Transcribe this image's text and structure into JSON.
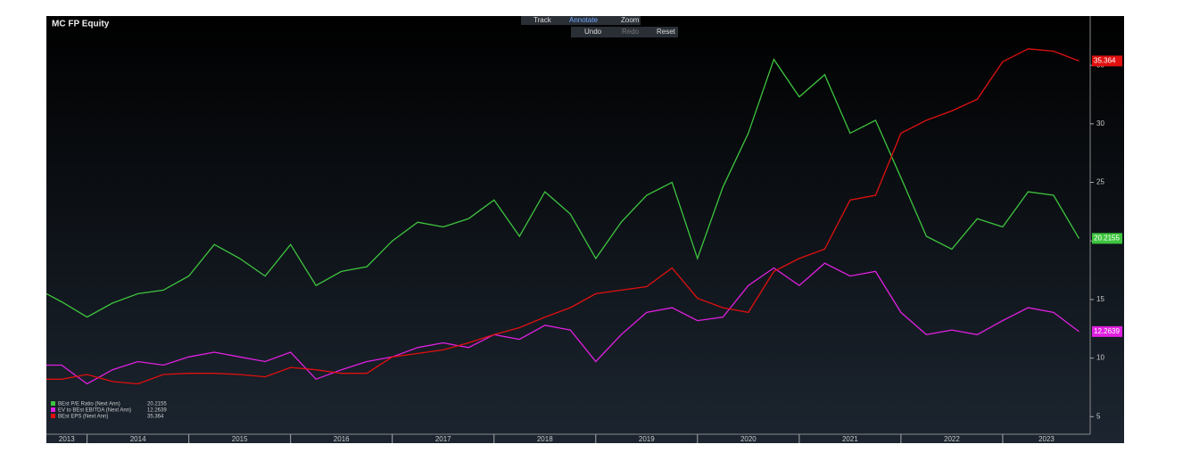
{
  "toolbar": [
    "Track",
    "Annotate",
    "Zoom",
    "Undo",
    "Redo",
    "Reset"
  ],
  "chart_data": {
    "type": "line",
    "title": "MC FP Equity",
    "x": [
      2013.6,
      2013.75,
      2014,
      2014.25,
      2014.5,
      2014.75,
      2015,
      2015.25,
      2015.5,
      2015.75,
      2016,
      2016.25,
      2016.5,
      2016.75,
      2017,
      2017.25,
      2017.5,
      2017.75,
      2018,
      2018.25,
      2018.5,
      2018.75,
      2019,
      2019.25,
      2019.5,
      2019.75,
      2020,
      2020.25,
      2020.5,
      2020.75,
      2021,
      2021.25,
      2021.5,
      2021.75,
      2022,
      2022.25,
      2022.5,
      2022.75,
      2023,
      2023.25,
      2023.5,
      2023.75
    ],
    "xlim": [
      2013.6,
      2023.86
    ],
    "xticks": [
      2013,
      2014,
      2015,
      2016,
      2017,
      2018,
      2019,
      2020,
      2021,
      2022,
      2023
    ],
    "ylim": [
      3.5,
      39.2
    ],
    "yticks": [
      5,
      10,
      15,
      20,
      25,
      30,
      35
    ],
    "series": [
      {
        "name": "BEst P/E Ratio (Next Ann)",
        "color": "#3ec43e",
        "values": [
          15.5,
          14.8,
          13.5,
          14.7,
          15.5,
          15.8,
          17,
          19.7,
          18.5,
          17,
          19.7,
          16.2,
          17.4,
          17.8,
          20,
          21.6,
          21.2,
          21.9,
          23.5,
          20.4,
          24.2,
          22.3,
          18.5,
          21.6,
          23.9,
          25,
          18.5,
          24.6,
          29.2,
          35.5,
          32.3,
          34.2,
          29.2,
          30.3,
          25.4,
          20.4,
          19.3,
          21.9,
          21.2,
          24.2,
          23.9,
          20.2155
        ]
      },
      {
        "name": "EV to BEst EBITDA (Next Ann)",
        "color": "#e020e0",
        "values": [
          9.4,
          9.4,
          7.8,
          9,
          9.7,
          9.4,
          10.1,
          10.5,
          10.1,
          9.7,
          10.5,
          8.2,
          9,
          9.7,
          10.1,
          10.9,
          11.3,
          10.9,
          12,
          11.6,
          12.8,
          12.4,
          9.7,
          12,
          13.9,
          14.3,
          13.2,
          13.5,
          16.2,
          17.7,
          16.2,
          18.1,
          17,
          17.4,
          13.9,
          12,
          12.4,
          12,
          13.2,
          14.3,
          13.9,
          12.2639
        ]
      },
      {
        "name": "BEst EPS (Next Ann)",
        "color": "#e01010",
        "values": [
          8.2,
          8.2,
          8.6,
          8,
          7.8,
          8.6,
          8.7,
          8.7,
          8.6,
          8.4,
          9.2,
          9,
          8.7,
          8.7,
          10.1,
          10.4,
          10.7,
          11.3,
          12,
          12.6,
          13.5,
          14.3,
          15.5,
          15.8,
          16.1,
          17.7,
          15.1,
          14.3,
          13.9,
          17.4,
          18.5,
          19.3,
          23.5,
          23.9,
          29.2,
          30.3,
          31.1,
          32.1,
          35.3,
          36.4,
          36.2,
          35.364
        ]
      }
    ]
  }
}
